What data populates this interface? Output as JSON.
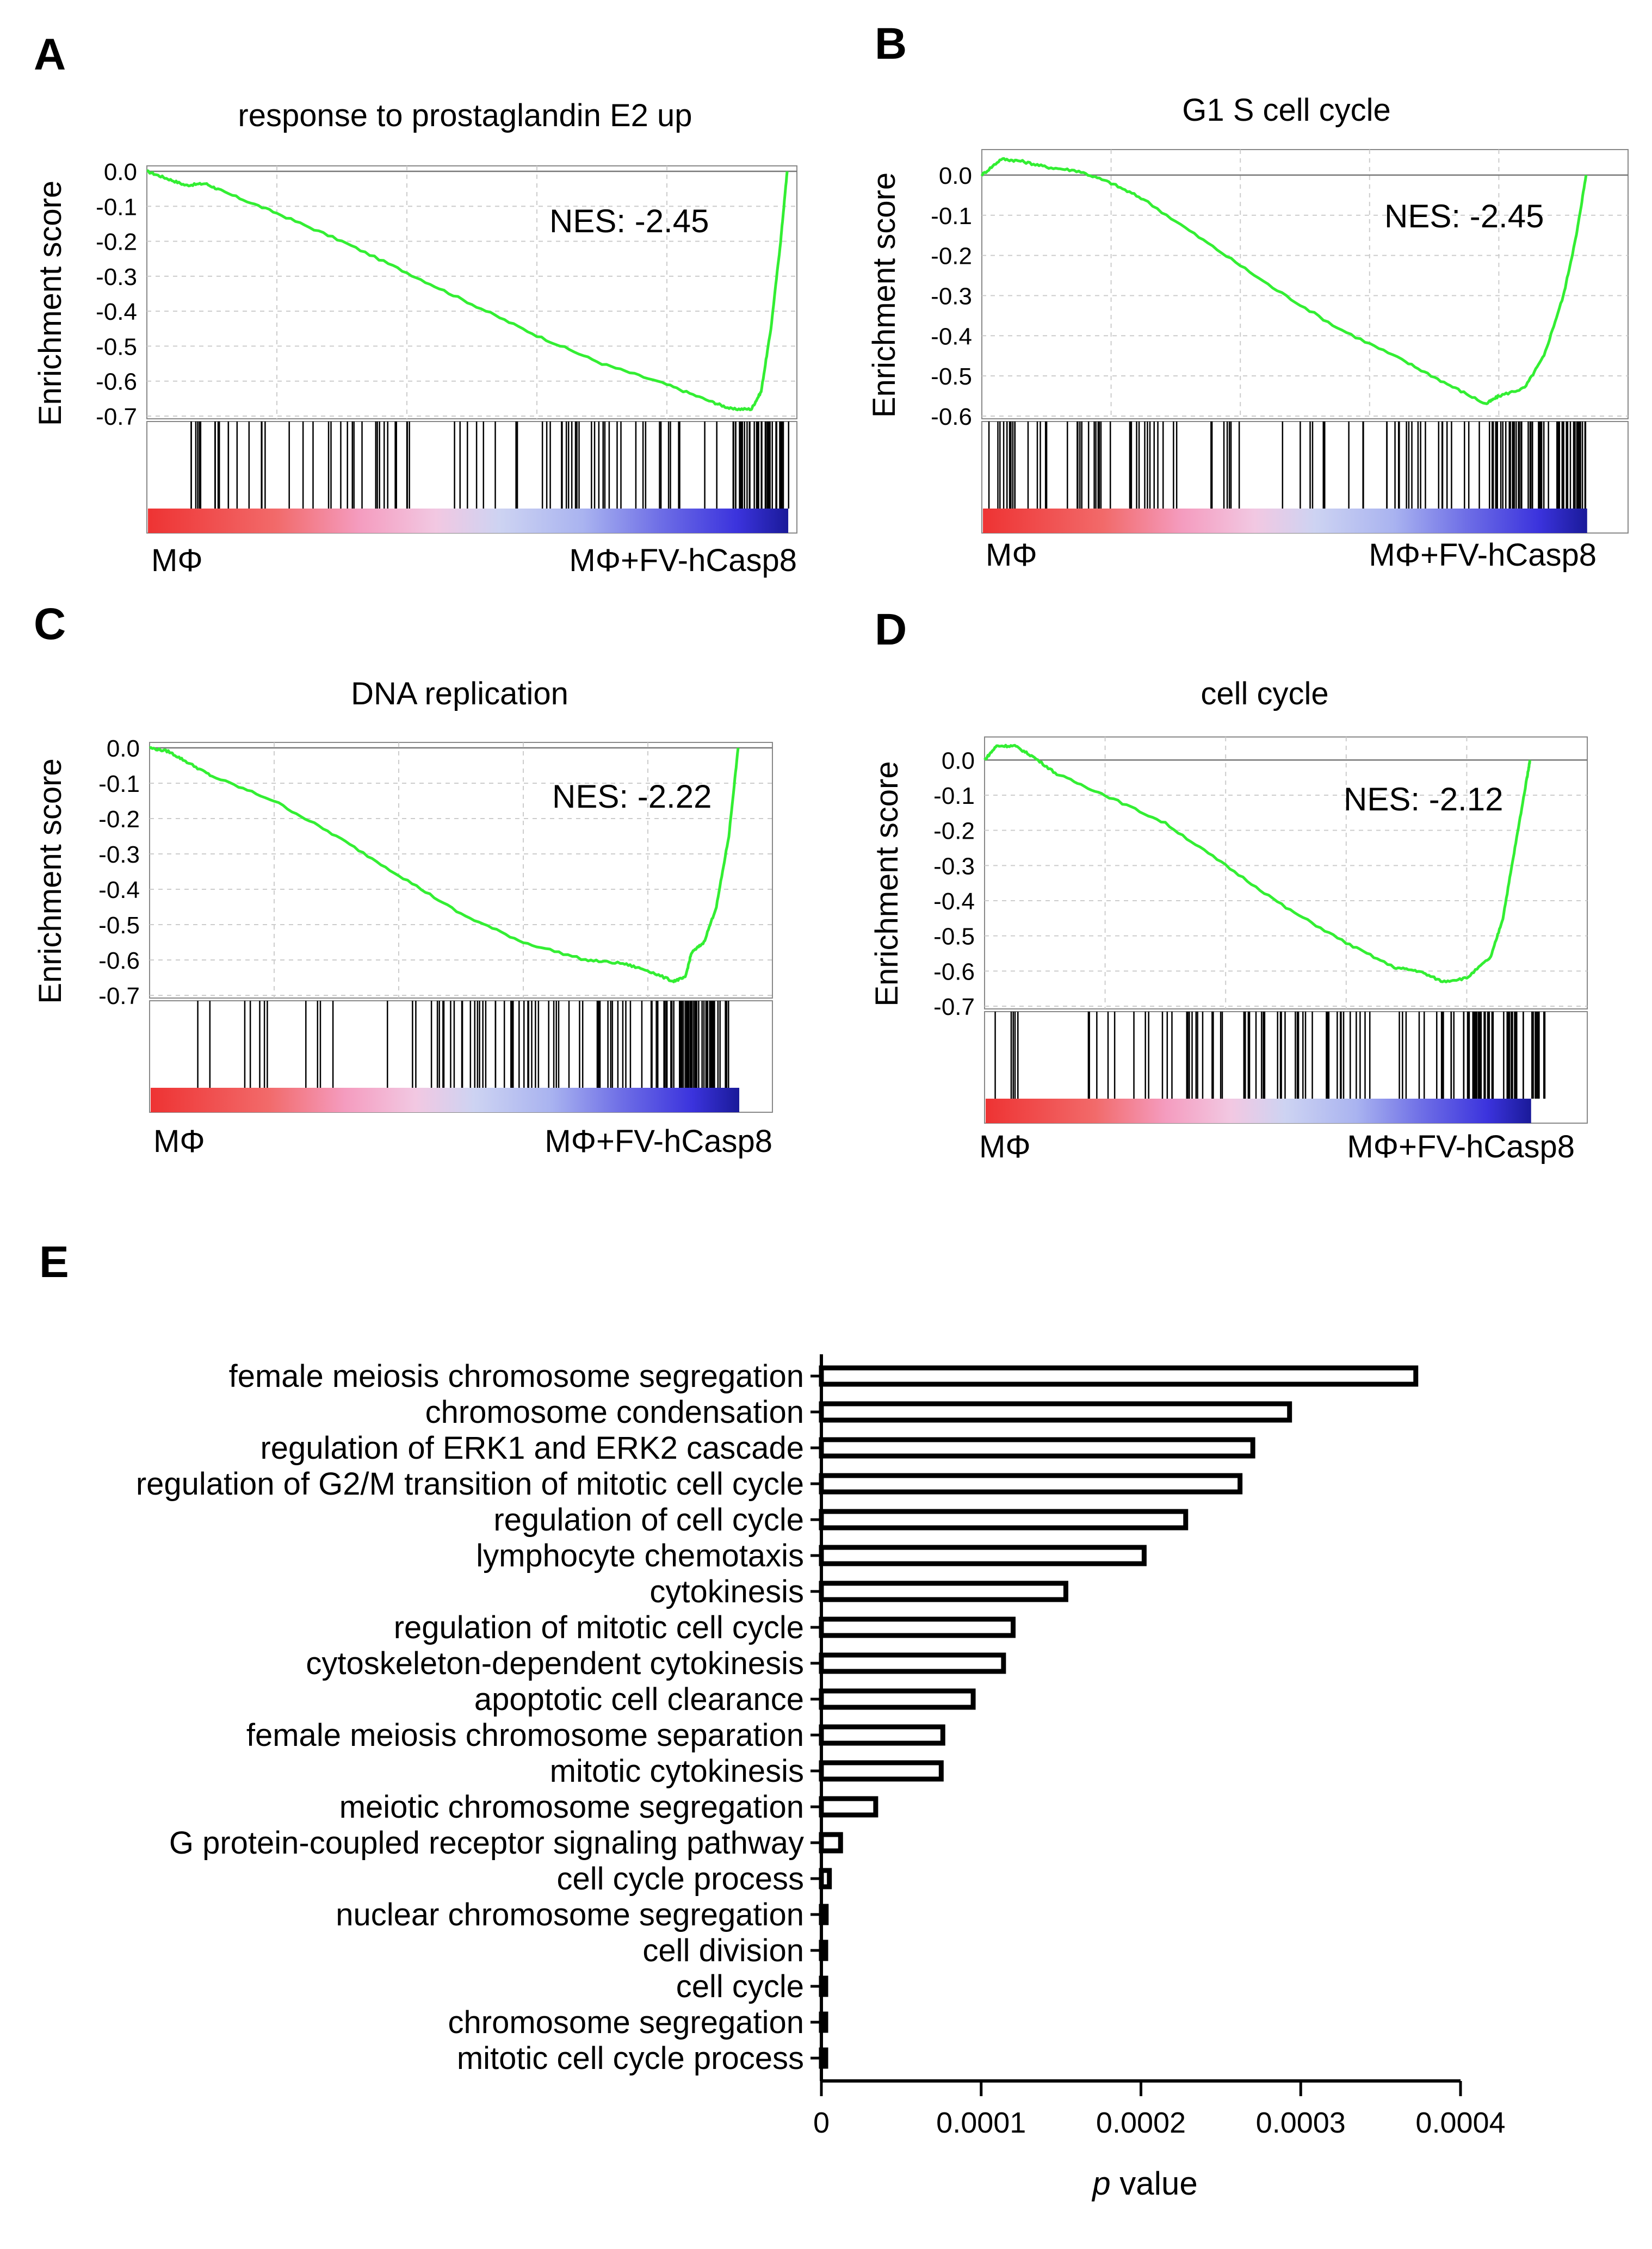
{
  "colors": {
    "curve": "#33ee33",
    "axis": "#000000",
    "grid": "#cccccc",
    "frame": "#888888",
    "ramp": [
      "#ee3333",
      "#f26a6a",
      "#f49cbf",
      "#f2c8e2",
      "#cdd3f2",
      "#a9b3f0",
      "#6e6ee6",
      "#3b33dd",
      "#1a1a99"
    ]
  },
  "chart_data": [
    {
      "panel": "A",
      "type": "line",
      "title": "response to prostaglandin E2 up",
      "ylabel": "Enrichment score",
      "yticks": [
        "0.0",
        "-0.1",
        "-0.2",
        "-0.3",
        "-0.4",
        "-0.5",
        "-0.6",
        "-0.7"
      ],
      "ylim": [
        -0.7,
        0.0
      ],
      "nes": "NES: -2.45",
      "left_label": "MΦ",
      "right_label": "MΦ+FV-hCasp8",
      "curve": [
        [
          0,
          0
        ],
        [
          0.03,
          -0.02
        ],
        [
          0.06,
          -0.04
        ],
        [
          0.09,
          -0.035
        ],
        [
          0.12,
          -0.06
        ],
        [
          0.2,
          -0.12
        ],
        [
          0.3,
          -0.2
        ],
        [
          0.4,
          -0.29
        ],
        [
          0.5,
          -0.38
        ],
        [
          0.6,
          -0.47
        ],
        [
          0.7,
          -0.55
        ],
        [
          0.8,
          -0.61
        ],
        [
          0.87,
          -0.66
        ],
        [
          0.9,
          -0.68
        ],
        [
          0.93,
          -0.68
        ],
        [
          0.945,
          -0.63
        ],
        [
          0.96,
          -0.45
        ],
        [
          0.975,
          -0.2
        ],
        [
          0.985,
          0
        ]
      ],
      "hit_ranges": [
        [
          0.04,
          0.34
        ],
        [
          0.35,
          0.41
        ],
        [
          0.47,
          0.86
        ],
        [
          0.87,
          0.94
        ],
        [
          0.9,
          0.99
        ]
      ],
      "hit_counts": [
        28,
        10,
        38,
        6,
        30
      ]
    },
    {
      "panel": "B",
      "type": "line",
      "title": "G1 S cell cycle",
      "ylabel": "Enrichment score",
      "yticks": [
        "0.0",
        "-0.1",
        "-0.2",
        "-0.3",
        "-0.4",
        "-0.5",
        "-0.6"
      ],
      "ylim": [
        -0.6,
        0.05
      ],
      "nes": "NES: -2.45",
      "left_label": "MΦ",
      "right_label": "MΦ+FV-hCasp8",
      "curve": [
        [
          0,
          0
        ],
        [
          0.03,
          0.04
        ],
        [
          0.06,
          0.035
        ],
        [
          0.1,
          0.02
        ],
        [
          0.15,
          0.01
        ],
        [
          0.2,
          -0.02
        ],
        [
          0.25,
          -0.06
        ],
        [
          0.35,
          -0.17
        ],
        [
          0.45,
          -0.28
        ],
        [
          0.55,
          -0.38
        ],
        [
          0.65,
          -0.46
        ],
        [
          0.72,
          -0.52
        ],
        [
          0.78,
          -0.57
        ],
        [
          0.8,
          -0.55
        ],
        [
          0.84,
          -0.53
        ],
        [
          0.87,
          -0.45
        ],
        [
          0.9,
          -0.3
        ],
        [
          0.92,
          -0.15
        ],
        [
          0.935,
          0
        ]
      ],
      "hit_ranges": [
        [
          0.01,
          0.33
        ],
        [
          0.35,
          0.42
        ],
        [
          0.46,
          0.77
        ],
        [
          0.78,
          0.93
        ],
        [
          0.82,
          0.94
        ]
      ],
      "hit_counts": [
        42,
        8,
        28,
        30,
        30
      ]
    },
    {
      "panel": "C",
      "type": "line",
      "title": "DNA replication",
      "ylabel": "Enrichment score",
      "yticks": [
        "0.0",
        "-0.1",
        "-0.2",
        "-0.3",
        "-0.4",
        "-0.5",
        "-0.6",
        "-0.7"
      ],
      "ylim": [
        -0.7,
        0.0
      ],
      "nes": "NES: -2.22",
      "left_label": "MΦ",
      "right_label": "MΦ+FV-hCasp8",
      "curve": [
        [
          0,
          0
        ],
        [
          0.03,
          -0.01
        ],
        [
          0.06,
          -0.04
        ],
        [
          0.1,
          -0.08
        ],
        [
          0.2,
          -0.15
        ],
        [
          0.3,
          -0.25
        ],
        [
          0.4,
          -0.36
        ],
        [
          0.5,
          -0.47
        ],
        [
          0.6,
          -0.55
        ],
        [
          0.7,
          -0.6
        ],
        [
          0.76,
          -0.61
        ],
        [
          0.8,
          -0.63
        ],
        [
          0.84,
          -0.66
        ],
        [
          0.86,
          -0.65
        ],
        [
          0.87,
          -0.58
        ],
        [
          0.89,
          -0.55
        ],
        [
          0.91,
          -0.45
        ],
        [
          0.93,
          -0.25
        ],
        [
          0.945,
          0
        ]
      ],
      "hit_ranges": [
        [
          0.06,
          0.43
        ],
        [
          0.44,
          0.62
        ],
        [
          0.62,
          0.8
        ],
        [
          0.8,
          0.92
        ],
        [
          0.84,
          0.94
        ]
      ],
      "hit_counts": [
        14,
        30,
        22,
        30,
        24
      ]
    },
    {
      "panel": "D",
      "type": "line",
      "title": "cell cycle",
      "ylabel": "Enrichment score",
      "yticks": [
        "0.0",
        "-0.1",
        "-0.2",
        "-0.3",
        "-0.4",
        "-0.5",
        "-0.6",
        "-0.7"
      ],
      "ylim": [
        -0.7,
        0.05
      ],
      "nes": "NES: -2.12",
      "left_label": "MΦ",
      "right_label": "MΦ+FV-hCasp8",
      "curve": [
        [
          0,
          0
        ],
        [
          0.02,
          0.04
        ],
        [
          0.05,
          0.04
        ],
        [
          0.08,
          0.01
        ],
        [
          0.12,
          -0.04
        ],
        [
          0.2,
          -0.1
        ],
        [
          0.3,
          -0.18
        ],
        [
          0.4,
          -0.3
        ],
        [
          0.5,
          -0.42
        ],
        [
          0.6,
          -0.52
        ],
        [
          0.68,
          -0.59
        ],
        [
          0.72,
          -0.6
        ],
        [
          0.76,
          -0.63
        ],
        [
          0.8,
          -0.62
        ],
        [
          0.84,
          -0.56
        ],
        [
          0.86,
          -0.45
        ],
        [
          0.88,
          -0.25
        ],
        [
          0.9,
          -0.05
        ],
        [
          0.905,
          0
        ]
      ],
      "hit_ranges": [
        [
          0.0,
          0.06
        ],
        [
          0.17,
          0.4
        ],
        [
          0.42,
          0.64
        ],
        [
          0.68,
          0.92
        ],
        [
          0.8,
          0.94
        ]
      ],
      "hit_counts": [
        6,
        22,
        32,
        30,
        30
      ]
    },
    {
      "panel": "E",
      "type": "bar",
      "orientation": "horizontal",
      "categories": [
        "female meiosis chromosome segregation",
        "chromosome condensation",
        "regulation of ERK1 and ERK2 cascade",
        "regulation of G2/M transition of mitotic cell cycle",
        "regulation of cell cycle",
        "lymphocyte chemotaxis",
        "cytokinesis",
        "regulation of mitotic cell cycle",
        "cytoskeleton-dependent cytokinesis",
        "apoptotic cell clearance",
        "female meiosis chromosome separation",
        "mitotic cytokinesis",
        "meiotic chromosome segregation",
        "G protein-coupled receptor signaling pathway",
        "cell cycle process",
        "nuclear chromosome segregation",
        "cell division",
        "cell cycle",
        "chromosome segregation",
        "mitotic cell cycle process"
      ],
      "values": [
        0.000372,
        0.000293,
        0.00027,
        0.000262,
        0.000228,
        0.000202,
        0.000153,
        0.00012,
        0.000114,
        9.5e-05,
        7.6e-05,
        7.5e-05,
        3.4e-05,
        1.2e-05,
        5e-06,
        3e-06,
        2.5e-06,
        2e-06,
        1.5e-06,
        1e-06
      ],
      "xlim": [
        0,
        0.0004
      ],
      "xticks": [
        "0",
        "0.0001",
        "0.0002",
        "0.0003",
        "0.0004"
      ],
      "xlabel_italic": "p",
      "xlabel_rest": " value"
    }
  ]
}
